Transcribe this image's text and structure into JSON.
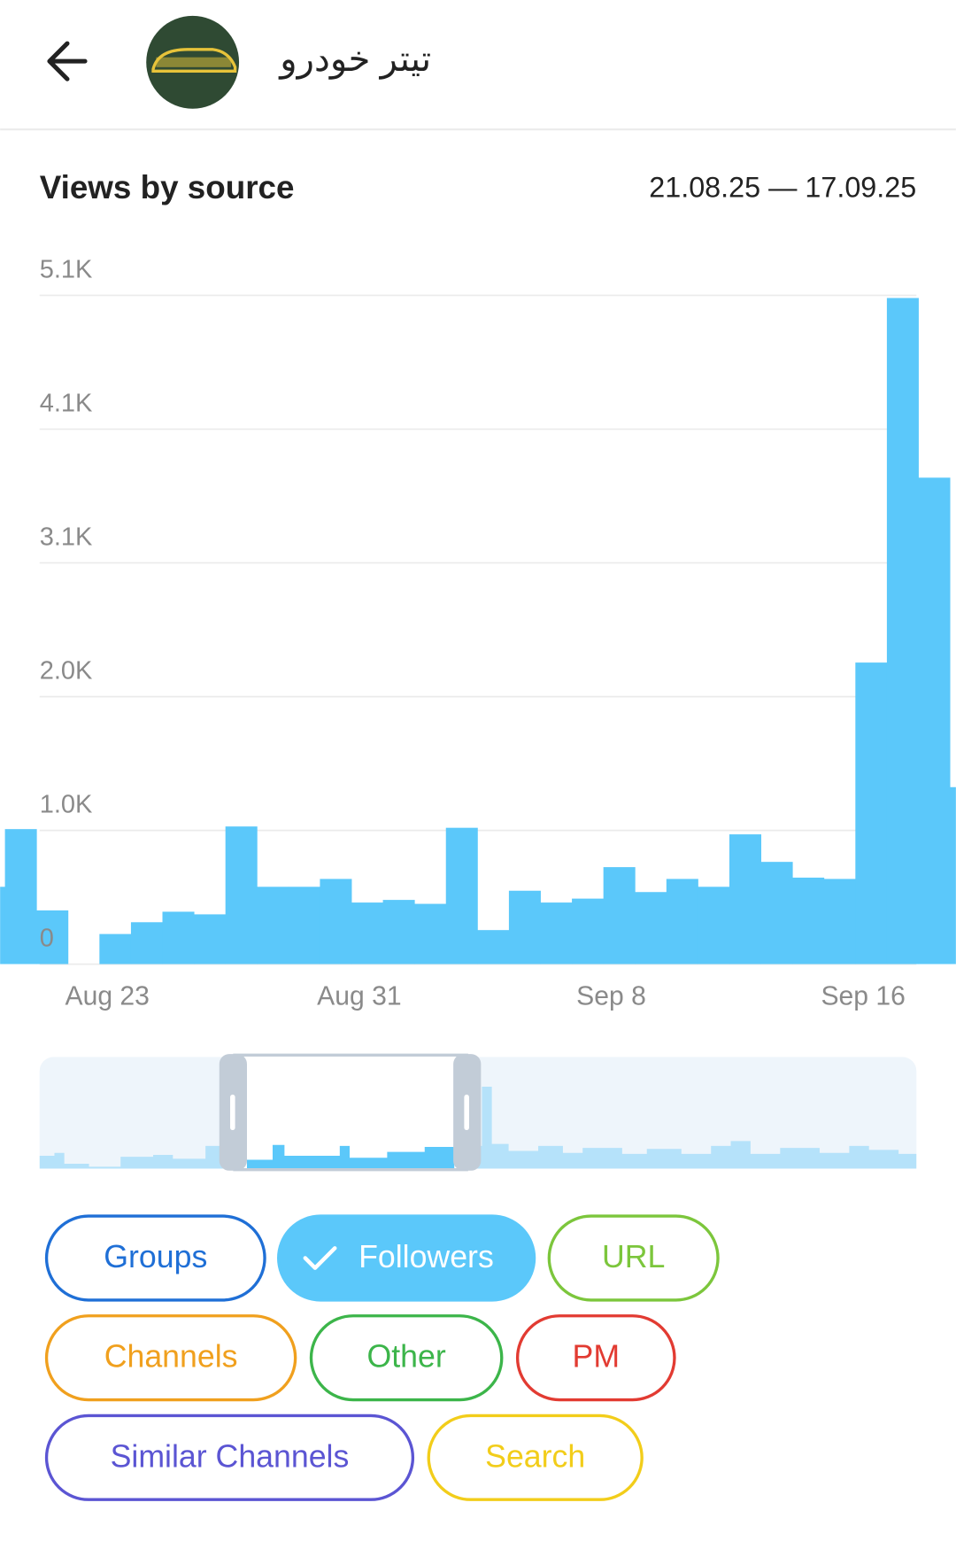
{
  "header": {
    "title": "تيتر خودرو"
  },
  "chart_data": {
    "type": "bar",
    "title": "Views by source",
    "subtitle": "21.08.25 — 17.09.25",
    "categories": [
      null,
      null,
      null,
      null,
      "Aug 23",
      null,
      null,
      null,
      null,
      null,
      null,
      null,
      "Aug 31",
      null,
      null,
      null,
      null,
      null,
      null,
      null,
      "Sep 8",
      null,
      null,
      null,
      null,
      null,
      null,
      null,
      "Sep 16",
      null,
      null,
      null
    ],
    "values": [
      590,
      1030,
      410,
      0,
      230,
      320,
      400,
      380,
      1050,
      590,
      590,
      650,
      470,
      490,
      460,
      1040,
      260,
      560,
      470,
      500,
      740,
      550,
      650,
      590,
      990,
      780,
      660,
      650,
      2300,
      5080,
      3710,
      1350
    ],
    "color": "#5bc8fa",
    "ylim": [
      0,
      5100
    ],
    "yticks": [
      0,
      {
        "value": 1020,
        "label": "1.0K"
      },
      {
        "value": 2040,
        "label": "2.0K"
      },
      {
        "value": 3060,
        "label": "3.1K"
      },
      {
        "value": 4080,
        "label": "4.1K"
      },
      {
        "value": 5100,
        "label": "5.1K"
      }
    ],
    "grid": true
  },
  "filters": [
    {
      "label": "Groups",
      "color": "#1f6fd6",
      "selected": false
    },
    {
      "label": "Followers",
      "color": "#5bc8fa",
      "selected": true
    },
    {
      "label": "URL",
      "color": "#7cc63c",
      "selected": false
    },
    {
      "label": "Channels",
      "color": "#f0a01e",
      "selected": false
    },
    {
      "label": "Other",
      "color": "#3cb54a",
      "selected": false
    },
    {
      "label": "PM",
      "color": "#e23b32",
      "selected": false
    },
    {
      "label": "Similar Channels",
      "color": "#5b55d3",
      "selected": false
    },
    {
      "label": "Search",
      "color": "#f2cd1a",
      "selected": false
    }
  ]
}
